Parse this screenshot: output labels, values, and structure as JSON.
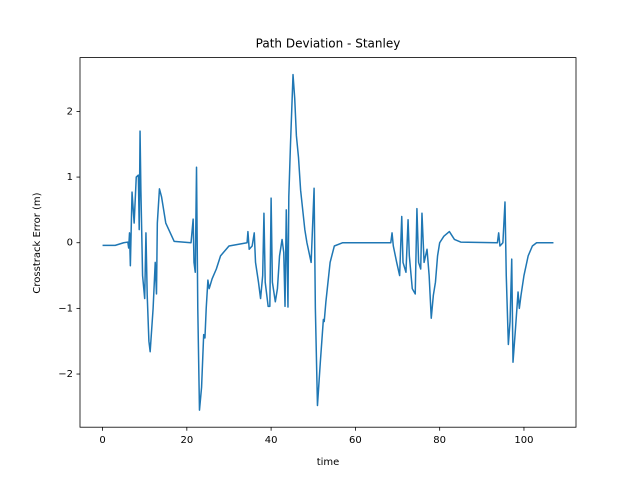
{
  "chart_data": {
    "type": "line",
    "title": "Path Deviation - Stanley",
    "x_label": "time",
    "y_label": "Crosstrack Error (m)",
    "x": [
      0,
      3,
      5,
      6,
      6.2,
      6.4,
      6.6,
      7,
      7.5,
      8,
      8.5,
      8.7,
      8.9,
      9.1,
      9.5,
      10,
      10.3,
      10.6,
      11,
      11.3,
      12,
      12.5,
      12.8,
      13,
      13.5,
      14,
      15,
      17,
      21,
      21.5,
      21.7,
      22,
      22.3,
      22.6,
      23,
      23.5,
      24,
      24.3,
      24.6,
      25,
      25.3,
      26,
      27,
      28,
      30,
      34.3,
      34.5,
      34.8,
      35.5,
      36,
      36.3,
      37,
      37.5,
      38,
      38.3,
      38.6,
      39.3,
      39.7,
      40,
      40.3,
      41,
      41.5,
      42,
      42.6,
      43,
      43.3,
      43.6,
      44,
      44.2,
      44.6,
      45.2,
      45.6,
      46,
      46.5,
      47,
      48,
      48.5,
      49.5,
      50.2,
      50.5,
      51,
      51.7,
      52.4,
      52.6,
      53,
      54,
      55,
      57,
      68.4,
      68.7,
      69,
      69.8,
      70.5,
      71,
      71.3,
      72,
      72.5,
      72.8,
      73.5,
      74.2,
      74.6,
      75,
      75.5,
      75.8,
      76.3,
      77,
      77.5,
      78,
      78.5,
      79,
      79.5,
      80,
      81,
      82.3,
      83.5,
      85,
      93.7,
      94,
      94.3,
      95,
      95.5,
      95.8,
      96.3,
      96.7,
      97.1,
      97.4,
      98,
      98.6,
      98.9,
      99.3,
      100,
      101,
      102,
      103,
      107
    ],
    "series": [
      {
        "color": "#1f77b4",
        "values": [
          -0.04,
          -0.04,
          0,
          0.01,
          -0.08,
          0.15,
          -0.35,
          0.77,
          0.3,
          1.0,
          1.03,
          0.2,
          1.7,
          0.8,
          -0.5,
          -0.85,
          0.15,
          -0.8,
          -1.5,
          -1.66,
          -1.0,
          -0.3,
          -0.78,
          0.3,
          0.82,
          0.7,
          0.3,
          0.02,
          0.0,
          0.36,
          -0.3,
          -0.45,
          1.15,
          -1.0,
          -2.55,
          -2.2,
          -1.4,
          -1.45,
          -1.0,
          -0.57,
          -0.7,
          -0.55,
          -0.4,
          -0.2,
          -0.05,
          0.0,
          0.17,
          -0.1,
          -0.05,
          0.15,
          -0.3,
          -0.6,
          -0.85,
          -0.5,
          0.45,
          -0.6,
          -0.97,
          -0.97,
          0.68,
          -0.6,
          -0.9,
          -0.7,
          -0.2,
          0.05,
          -0.15,
          -0.97,
          0.5,
          -0.98,
          0.7,
          1.5,
          2.56,
          2.2,
          1.63,
          1.3,
          0.8,
          0.2,
          0.0,
          -0.3,
          0.83,
          -1.0,
          -2.48,
          -1.8,
          -1.17,
          -1.2,
          -0.9,
          -0.3,
          -0.05,
          0.0,
          0.0,
          0.15,
          -0.05,
          -0.3,
          -0.5,
          0.4,
          -0.3,
          -0.45,
          0.35,
          -0.2,
          -0.7,
          -0.78,
          0.52,
          -0.3,
          -0.4,
          0.45,
          -0.3,
          -0.1,
          -0.5,
          -1.15,
          -0.8,
          -0.6,
          -0.2,
          0.0,
          0.1,
          0.17,
          0.05,
          0.01,
          0.0,
          0.15,
          -0.05,
          0.0,
          0.62,
          -0.5,
          -1.55,
          -1.2,
          -0.25,
          -1.82,
          -1.3,
          -0.75,
          -1.0,
          -0.8,
          -0.5,
          -0.2,
          -0.05,
          0.0,
          0.0
        ]
      }
    ],
    "xlim": [
      -5.35,
      112.35
    ],
    "ylim": [
      -2.81,
      2.82
    ],
    "xticks": [
      0,
      20,
      40,
      60,
      80,
      100
    ],
    "yticks": [
      {
        "value": -2,
        "label": "−2"
      },
      {
        "value": -1,
        "label": "−1"
      },
      0,
      1,
      2
    ],
    "grid": false
  }
}
